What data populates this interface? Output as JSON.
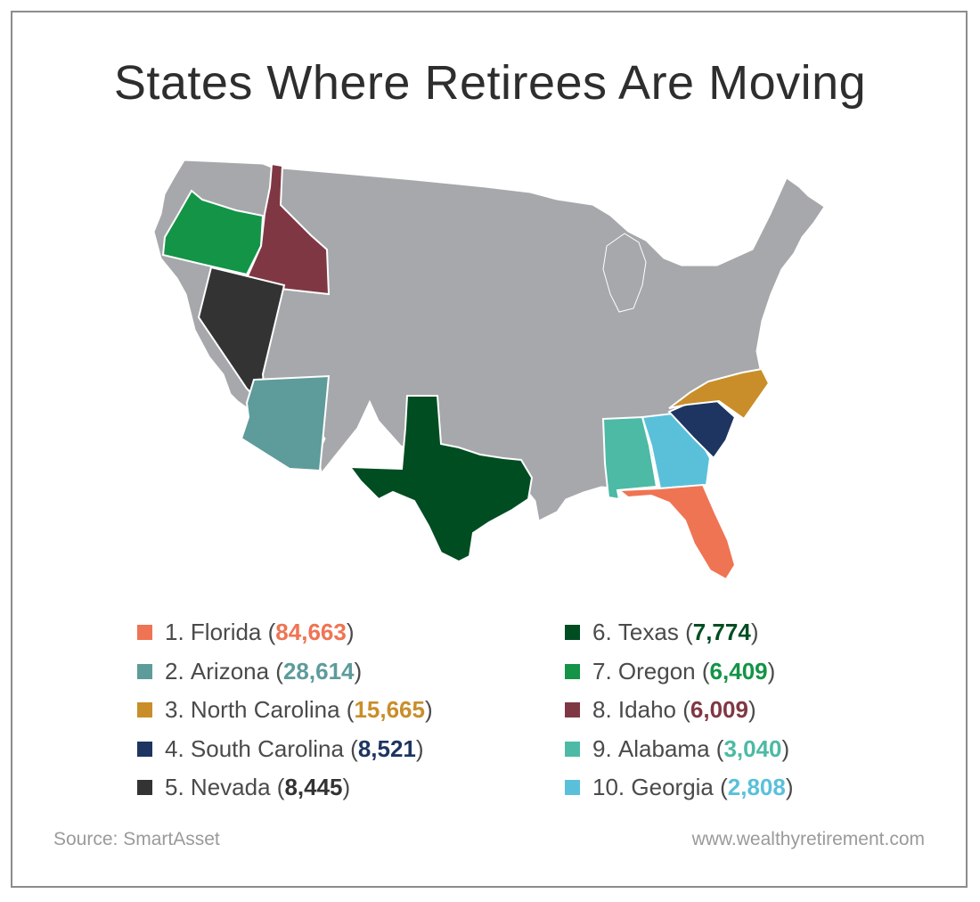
{
  "title": "States Where Retirees Are Moving",
  "map": {
    "base_color": "#a6a8ab",
    "border_color": "#ffffff"
  },
  "legend": [
    {
      "rank": "1.",
      "state": "Florida",
      "value": "84,663",
      "color": "#ef7453"
    },
    {
      "rank": "2.",
      "state": "Arizona",
      "value": "28,614",
      "color": "#5e9b9b"
    },
    {
      "rank": "3.",
      "state": "North Carolina",
      "value": "15,665",
      "color": "#c98e2a"
    },
    {
      "rank": "4.",
      "state": "South Carolina",
      "value": "8,521",
      "color": "#1d3560"
    },
    {
      "rank": "5.",
      "state": "Nevada",
      "value": "8,445",
      "color": "#333333"
    },
    {
      "rank": "6.",
      "state": "Texas",
      "value": "7,774",
      "color": "#004d22"
    },
    {
      "rank": "7.",
      "state": "Oregon",
      "value": "6,409",
      "color": "#139447"
    },
    {
      "rank": "8.",
      "state": "Idaho",
      "value": "6,009",
      "color": "#7f3843"
    },
    {
      "rank": "9.",
      "state": "Alabama",
      "value": "3,040",
      "color": "#4cbaa5"
    },
    {
      "rank": "10.",
      "state": "Georgia",
      "value": "2,808",
      "color": "#5ac0da"
    }
  ],
  "footer": {
    "source": "Source: SmartAsset",
    "website": "www.wealthyretirement.com"
  }
}
